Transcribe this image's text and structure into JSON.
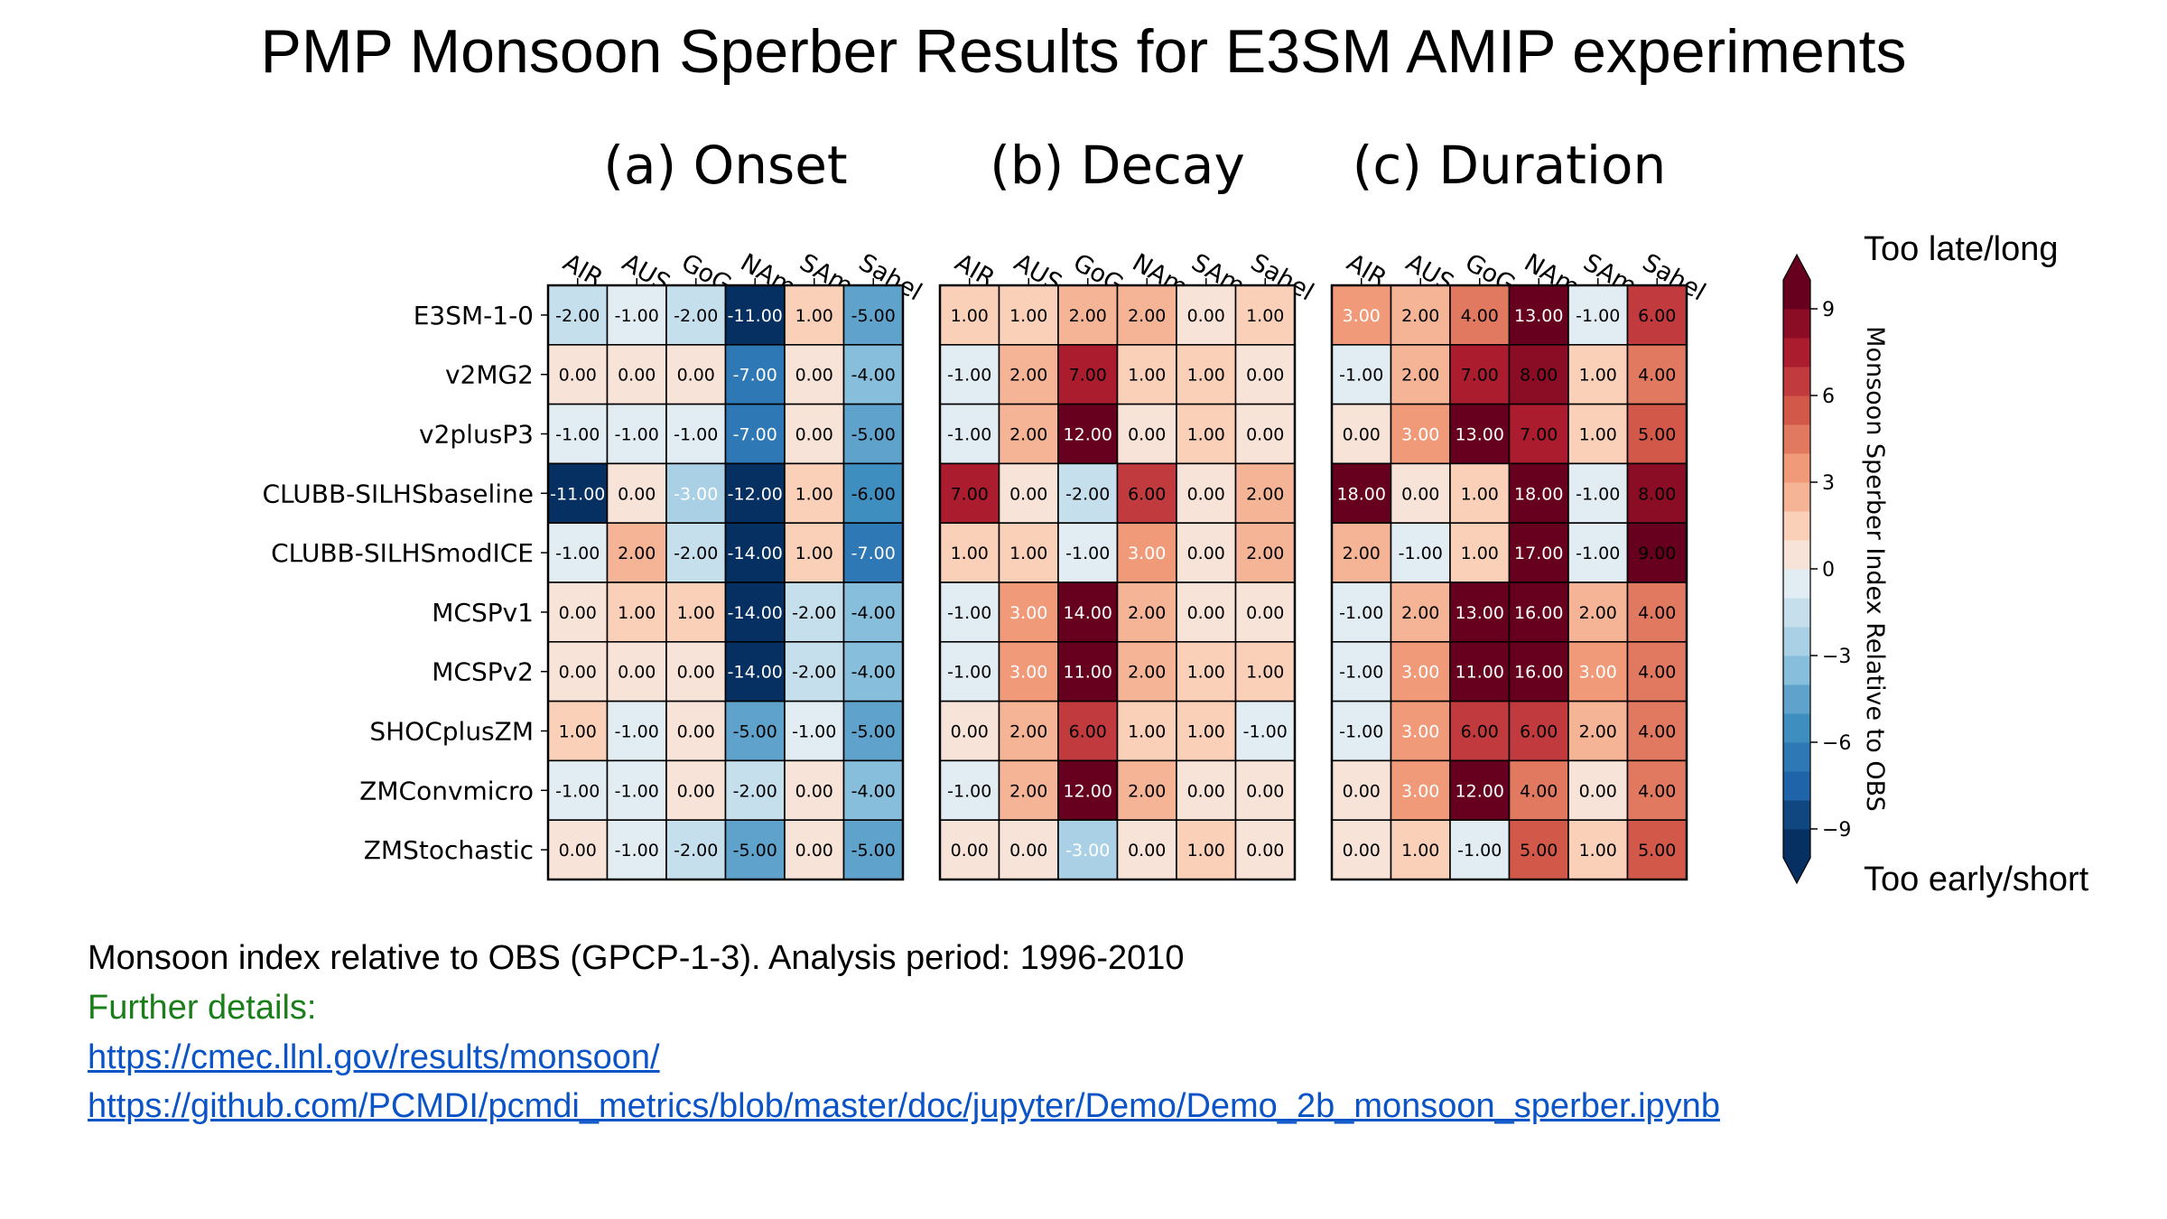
{
  "slide": {
    "title": "PMP Monsoon Sperber Results for E3SM AMIP experiments",
    "note": "Monsoon index relative to OBS (GPCP-1-3). Analysis period: 1996-2010",
    "details_label": "Further details:",
    "link1": "https://cmec.llnl.gov/results/monsoon/",
    "link2": "https://github.com/PCMDI/pcmdi_metrics/blob/master/doc/jupyter/Demo/Demo_2b_monsoon_sperber.ipynb",
    "top_label": "Too late/long",
    "bottom_label": "Too early/short"
  },
  "chart_data": {
    "type": "heatmap",
    "columns": [
      "AIR",
      "AUS",
      "GoG",
      "NAmo",
      "SAmo",
      "Sahel"
    ],
    "rows": [
      "E3SM-1-0",
      "v2MG2",
      "v2plusP3",
      "CLUBB-SILHSbaseline",
      "CLUBB-SILHSmodICE",
      "MCSPv1",
      "MCSPv2",
      "SHOCplusZM",
      "ZMConvmicro",
      "ZMStochastic"
    ],
    "panels": [
      {
        "title": "(a) Onset",
        "values": [
          [
            -2,
            -1,
            -2,
            -11,
            1,
            -5
          ],
          [
            0,
            0,
            0,
            -7,
            0,
            -4
          ],
          [
            -1,
            -1,
            -1,
            -7,
            0,
            -5
          ],
          [
            -11,
            0,
            -3,
            -12,
            1,
            -6
          ],
          [
            -1,
            2,
            -2,
            -14,
            1,
            -7
          ],
          [
            0,
            1,
            1,
            -14,
            -2,
            -4
          ],
          [
            0,
            0,
            0,
            -14,
            -2,
            -4
          ],
          [
            1,
            -1,
            0,
            -5,
            -1,
            -5
          ],
          [
            -1,
            -1,
            0,
            -2,
            0,
            -4
          ],
          [
            0,
            -1,
            -2,
            -5,
            0,
            -5
          ]
        ]
      },
      {
        "title": "(b) Decay",
        "values": [
          [
            1,
            1,
            2,
            2,
            0,
            1
          ],
          [
            -1,
            2,
            7,
            1,
            1,
            0
          ],
          [
            -1,
            2,
            12,
            0,
            1,
            0
          ],
          [
            7,
            0,
            -2,
            6,
            0,
            2
          ],
          [
            1,
            1,
            -1,
            3,
            0,
            2
          ],
          [
            -1,
            3,
            14,
            2,
            0,
            0
          ],
          [
            -1,
            3,
            11,
            2,
            1,
            1
          ],
          [
            0,
            2,
            6,
            1,
            1,
            -1
          ],
          [
            -1,
            2,
            12,
            2,
            0,
            0
          ],
          [
            0,
            0,
            -3,
            0,
            1,
            0
          ]
        ]
      },
      {
        "title": "(c) Duration",
        "values": [
          [
            3,
            2,
            4,
            13,
            -1,
            6
          ],
          [
            -1,
            2,
            7,
            8,
            1,
            4
          ],
          [
            0,
            3,
            13,
            7,
            1,
            5
          ],
          [
            18,
            0,
            1,
            18,
            -1,
            8
          ],
          [
            2,
            -1,
            1,
            17,
            -1,
            9
          ],
          [
            -1,
            2,
            13,
            16,
            2,
            4
          ],
          [
            -1,
            3,
            11,
            16,
            3,
            4
          ],
          [
            -1,
            3,
            6,
            6,
            2,
            4
          ],
          [
            0,
            3,
            12,
            4,
            0,
            4
          ],
          [
            0,
            1,
            -1,
            5,
            1,
            5
          ]
        ]
      }
    ],
    "colorbar": {
      "label": "Monsoon Sperber Index Relative to OBS",
      "range": [
        -10,
        10
      ],
      "ticks": [
        9,
        6,
        3,
        0,
        -3,
        -6,
        -9
      ],
      "tick_labels": [
        "9",
        "6",
        "3",
        "0",
        "−3",
        "−6",
        "−9"
      ],
      "colormap": "RdBu_r",
      "extend": "both"
    },
    "value_format": "2 decimals"
  }
}
